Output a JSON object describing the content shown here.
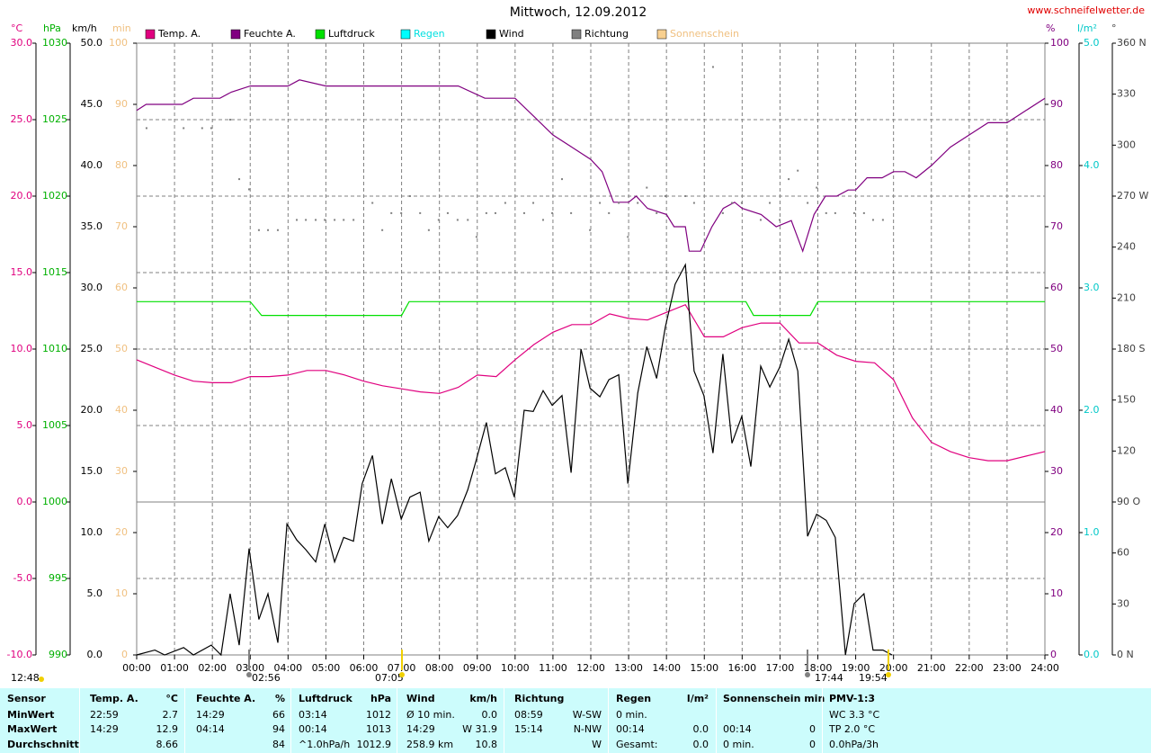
{
  "chart_data": {
    "type": "line",
    "title": "Mittwoch, 12.09.2012",
    "source": "www.schneifelwetter.de",
    "xlim": [
      0,
      24
    ],
    "xticks": [
      {
        "value": 0,
        "label": "00:00"
      },
      {
        "value": 1,
        "label": "01:00"
      },
      {
        "value": 2,
        "label": "02:00"
      },
      {
        "value": 3,
        "label": "03:00"
      },
      {
        "value": 4,
        "label": "04:00"
      },
      {
        "value": 5,
        "label": "05:00"
      },
      {
        "value": 6,
        "label": "06:00"
      },
      {
        "value": 7,
        "label": "07:00"
      },
      {
        "value": 8,
        "label": "08:00"
      },
      {
        "value": 9,
        "label": "09:00"
      },
      {
        "value": 10,
        "label": "10:00"
      },
      {
        "value": 11,
        "label": "11:00"
      },
      {
        "value": 12,
        "label": "12:00"
      },
      {
        "value": 13,
        "label": "13:00"
      },
      {
        "value": 14,
        "label": "14:00"
      },
      {
        "value": 15,
        "label": "15:00"
      },
      {
        "value": 16,
        "label": "16:00"
      },
      {
        "value": 17,
        "label": "17:00"
      },
      {
        "value": 18,
        "label": "18:00"
      },
      {
        "value": 19,
        "label": "19:00"
      },
      {
        "value": 20,
        "label": "20:00"
      },
      {
        "value": 21,
        "label": "21:00"
      },
      {
        "value": 22,
        "label": "22:00"
      },
      {
        "value": 23,
        "label": "23:00"
      },
      {
        "value": 24,
        "label": "24:00"
      }
    ],
    "grid": true,
    "axes": [
      {
        "unit": "°C",
        "color": "#e0007f",
        "lim": [
          -10,
          30
        ],
        "ticks": [
          {
            "value": 30,
            "label": "30.0"
          },
          {
            "value": 25,
            "label": "25.0"
          },
          {
            "value": 20,
            "label": "20.0"
          },
          {
            "value": 15,
            "label": "15.0"
          },
          {
            "value": 10,
            "label": "10.0"
          },
          {
            "value": 5,
            "label": "5.0"
          },
          {
            "value": 0,
            "label": "0.0"
          },
          {
            "value": -5,
            "label": "-5.0"
          },
          {
            "value": -10,
            "label": "-10.0"
          }
        ]
      },
      {
        "unit": "hPa",
        "color": "#00b000",
        "lim": [
          990,
          1030
        ],
        "ticks": [
          1030,
          1025,
          1020,
          1015,
          1010,
          1005,
          1000,
          995,
          990
        ]
      },
      {
        "unit": "km/h",
        "color": "#000000",
        "lim": [
          0,
          50
        ],
        "ticks": [
          {
            "value": 50,
            "label": "50.0"
          },
          {
            "value": 45,
            "label": "45.0"
          },
          {
            "value": 40,
            "label": "40.0"
          },
          {
            "value": 35,
            "label": "35.0"
          },
          {
            "value": 30,
            "label": "30.0"
          },
          {
            "value": 25,
            "label": "25.0"
          },
          {
            "value": 20,
            "label": "20.0"
          },
          {
            "value": 15,
            "label": "15.0"
          },
          {
            "value": 10,
            "label": "10.0"
          },
          {
            "value": 5,
            "label": "5.0"
          },
          {
            "value": 0,
            "label": "0.0"
          }
        ]
      },
      {
        "unit": "min",
        "color": "#f0c080",
        "lim": [
          0,
          100
        ],
        "ticks": [
          100,
          90,
          80,
          70,
          60,
          50,
          40,
          30,
          20,
          10,
          0
        ]
      },
      {
        "unit": "%",
        "color": "#800080",
        "lim": [
          0,
          100
        ],
        "ticks": [
          100,
          90,
          80,
          70,
          60,
          50,
          40,
          30,
          20,
          10,
          0
        ]
      },
      {
        "unit": "l/m²",
        "color": "#00c8c8",
        "lim": [
          0,
          5
        ],
        "ticks": [
          {
            "value": 5,
            "label": "5.0"
          },
          {
            "value": 4,
            "label": "4.0"
          },
          {
            "value": 3,
            "label": "3.0"
          },
          {
            "value": 2,
            "label": "2.0"
          },
          {
            "value": 1,
            "label": "1.0"
          },
          {
            "value": 0,
            "label": "0.0"
          }
        ]
      },
      {
        "unit": "°",
        "color": "#404040",
        "lim": [
          0,
          360
        ],
        "ticks": [
          {
            "value": 360,
            "label": "360 N"
          },
          330,
          300,
          {
            "value": 270,
            "label": "270 W"
          },
          240,
          210,
          {
            "value": 180,
            "label": "180 S"
          },
          150,
          120,
          {
            "value": 90,
            "label": "90 O"
          },
          60,
          30,
          {
            "value": 0,
            "label": "0 N"
          }
        ]
      }
    ],
    "series": [
      {
        "name": "Temp. A.",
        "color": "#e0007f",
        "axis": 0,
        "x": [
          0,
          0.5,
          1,
          1.5,
          2,
          2.5,
          3,
          3.5,
          4,
          4.5,
          5,
          5.5,
          6,
          6.5,
          7,
          7.5,
          8,
          8.5,
          9,
          9.5,
          10,
          10.5,
          11,
          11.5,
          12,
          12.5,
          13,
          13.5,
          14,
          14.5,
          15,
          15.5,
          16,
          16.5,
          17,
          17.5,
          18,
          18.5,
          19,
          19.5,
          20,
          20.5,
          21,
          21.5,
          22,
          22.5,
          23,
          23.5,
          24
        ],
        "values": [
          9.3,
          8.8,
          8.3,
          7.9,
          7.8,
          7.8,
          8.2,
          8.2,
          8.3,
          8.6,
          8.6,
          8.3,
          7.9,
          7.6,
          7.4,
          7.2,
          7.1,
          7.5,
          8.3,
          8.2,
          9.3,
          10.3,
          11.1,
          11.6,
          11.6,
          12.3,
          12.0,
          11.9,
          12.4,
          12.9,
          10.8,
          10.8,
          11.4,
          11.7,
          11.7,
          10.4,
          10.4,
          9.6,
          9.2,
          9.1,
          8.0,
          5.5,
          3.9,
          3.3,
          2.9,
          2.7,
          2.7,
          3.0,
          3.3
        ]
      },
      {
        "name": "Feuchte A.",
        "color": "#800080",
        "axis": 4,
        "x": [
          0,
          0.25,
          1.2,
          1.5,
          2.2,
          2.5,
          3,
          4,
          4.3,
          5,
          6,
          7,
          8,
          8.5,
          9.2,
          10,
          10.5,
          11,
          11.5,
          12,
          12.3,
          12.6,
          13,
          13.2,
          13.5,
          14,
          14.2,
          14.5,
          14.6,
          14.9,
          15.2,
          15.5,
          15.8,
          16,
          16.5,
          16.9,
          17.3,
          17.6,
          17.9,
          18.2,
          18.5,
          18.8,
          19,
          19.3,
          19.7,
          20,
          20.3,
          20.6,
          21,
          21.5,
          22,
          22.5,
          23,
          23.5,
          24
        ],
        "values": [
          89,
          90,
          90,
          91,
          91,
          92,
          93,
          93,
          94,
          93,
          93,
          93,
          93,
          93,
          91,
          91,
          88,
          85,
          83,
          81,
          79,
          74,
          74,
          75,
          73,
          72,
          70,
          70,
          66,
          66,
          70,
          73,
          74,
          73,
          72,
          70,
          71,
          66,
          72,
          75,
          75,
          76,
          76,
          78,
          78,
          79,
          79,
          78,
          80,
          83,
          85,
          87,
          87,
          89,
          91
        ]
      },
      {
        "name": "Luftdruck",
        "color": "#00e000",
        "axis": 1,
        "x": [
          0,
          3,
          3.3,
          7,
          7.2,
          16.1,
          16.3,
          17.8,
          18,
          24
        ],
        "values": [
          1013.1,
          1013.1,
          1012.2,
          1012.2,
          1013.1,
          1013.1,
          1012.2,
          1012.2,
          1013.1,
          1013.1
        ]
      },
      {
        "name": "Regen",
        "color": "#00ffff",
        "text_color": "#00e0e0",
        "axis": 5,
        "x": [],
        "values": []
      },
      {
        "name": "Wind",
        "color": "#000000",
        "axis": 2,
        "x": [
          0,
          0.48,
          0.74,
          1.24,
          1.5,
          1.97,
          2.23,
          2.47,
          2.71,
          2.97,
          3.23,
          3.47,
          3.73,
          3.97,
          4.23,
          4.47,
          4.73,
          4.97,
          5.23,
          5.47,
          5.73,
          5.96,
          6.23,
          6.49,
          6.73,
          6.99,
          7.22,
          7.49,
          7.72,
          7.98,
          8.22,
          8.48,
          8.75,
          8.98,
          9.24,
          9.48,
          9.74,
          9.98,
          10.24,
          10.48,
          10.74,
          10.98,
          11.24,
          11.48,
          11.74,
          11.98,
          12.24,
          12.48,
          12.74,
          12.98,
          13.24,
          13.48,
          13.74,
          13.97,
          14.23,
          14.5,
          14.73,
          14.99,
          15.23,
          15.49,
          15.73,
          15.99,
          16.23,
          16.49,
          16.73,
          16.99,
          17.23,
          17.47,
          17.73,
          17.97,
          18.22,
          18.46,
          18.73,
          18.96,
          19.22,
          19.46,
          19.72,
          19.96
        ],
        "values": [
          0,
          0.4,
          0,
          0.6,
          0,
          0.8,
          0,
          5.0,
          0.8,
          8.7,
          2.9,
          5.0,
          1.0,
          10.7,
          9.4,
          8.6,
          7.6,
          10.7,
          7.6,
          9.6,
          9.3,
          14.0,
          16.3,
          10.7,
          14.4,
          11.1,
          12.9,
          13.3,
          9.3,
          11.3,
          10.4,
          11.4,
          13.5,
          16.0,
          19.0,
          14.8,
          15.3,
          12.9,
          20.0,
          19.9,
          21.6,
          20.4,
          21.2,
          14.9,
          25.0,
          21.8,
          21.1,
          22.5,
          22.9,
          14.0,
          21.4,
          25.2,
          22.6,
          26.8,
          30.3,
          31.9,
          23.2,
          21.2,
          16.5,
          24.6,
          17.3,
          19.5,
          15.4,
          23.6,
          21.9,
          23.5,
          25.8,
          23.2,
          9.7,
          11.5,
          11.0,
          9.6,
          0,
          4.2,
          5.0,
          0.4,
          0.4,
          0
        ]
      },
      {
        "name": "Richtung",
        "color": "#808080",
        "axis": 6,
        "style": "dots",
        "x": [
          0.26,
          1.24,
          1.73,
          1.97,
          2.47,
          2.71,
          2.97,
          3.23,
          3.47,
          3.73,
          4.23,
          4.47,
          4.73,
          4.97,
          5.23,
          5.47,
          5.73,
          6.23,
          6.49,
          6.73,
          6.99,
          7.22,
          7.49,
          7.72,
          7.98,
          8.22,
          8.48,
          8.75,
          8.98,
          9.24,
          9.48,
          9.74,
          10.24,
          10.48,
          10.74,
          10.98,
          11.24,
          11.48,
          11.98,
          12.24,
          12.48,
          12.74,
          12.98,
          13.24,
          13.48,
          13.74,
          13.97,
          14.5,
          14.73,
          15.23,
          15.49,
          15.73,
          15.99,
          16.49,
          16.73,
          16.99,
          17.23,
          17.47,
          17.73,
          17.97,
          18.22,
          18.46,
          18.96,
          19.22,
          19.46,
          19.72
        ],
        "values": [
          310,
          310,
          310,
          310,
          315,
          280,
          274,
          250,
          250,
          250,
          256,
          256,
          256,
          256,
          256,
          256,
          256,
          266,
          250,
          260,
          260,
          270,
          260,
          250,
          256,
          260,
          256,
          256,
          246,
          260,
          260,
          266,
          260,
          266,
          256,
          260,
          280,
          260,
          250,
          266,
          260,
          266,
          246,
          266,
          275,
          260,
          270,
          270,
          266,
          346,
          260,
          266,
          266,
          256,
          266,
          256,
          280,
          285,
          266,
          275,
          260,
          260,
          260,
          260,
          256,
          256
        ]
      },
      {
        "name": "Sonnenschein",
        "color": "#f8d090",
        "text_color": "#f0c080",
        "axis": 3,
        "x": [],
        "values": []
      }
    ],
    "sun_moon": [
      "12:48",
      "02:56",
      "07:05",
      "17:44",
      "19:54"
    ],
    "table": {
      "header": [
        [
          "Sensor",
          null
        ],
        [
          "Temp. A.",
          "°C"
        ],
        [
          "Feuchte A.",
          "%"
        ],
        [
          "Luftdruck",
          "hPa"
        ],
        [
          "Wind",
          "km/h"
        ],
        [
          "Richtung",
          null
        ],
        [
          "Regen",
          "l/m²"
        ],
        [
          "Sonnenschein min",
          null
        ],
        [
          "PMV-1:3",
          null
        ]
      ],
      "rows": [
        [
          [
            "MinWert",
            null
          ],
          [
            "22:59",
            "2.7"
          ],
          [
            "14:29",
            "66"
          ],
          [
            "03:14",
            "1012"
          ],
          [
            "Ø 10 min.",
            "0.0"
          ],
          [
            "08:59",
            "W-SW"
          ],
          [
            "0 min.",
            null
          ],
          [
            null,
            null
          ],
          [
            "WC 3.3 °C",
            null
          ]
        ],
        [
          [
            "MaxWert",
            null
          ],
          [
            "14:29",
            "12.9"
          ],
          [
            "04:14",
            "94"
          ],
          [
            "00:14",
            "1013"
          ],
          [
            "14:29",
            "W 31.9"
          ],
          [
            "15:14",
            "N-NW"
          ],
          [
            "00:14",
            "0.0"
          ],
          [
            "00:14",
            "0"
          ],
          [
            "TP 2.0 °C",
            null
          ]
        ],
        [
          [
            "Durchschnitt",
            null
          ],
          [
            null,
            "8.66"
          ],
          [
            null,
            "84"
          ],
          [
            "^1.0hPa/h",
            "1012.9"
          ],
          [
            "258.9 km",
            "10.8"
          ],
          [
            null,
            "W"
          ],
          [
            "Gesamt:",
            "0.0"
          ],
          [
            "0 min.",
            "0"
          ],
          [
            "0.0hPa/3h",
            null
          ]
        ]
      ]
    }
  }
}
